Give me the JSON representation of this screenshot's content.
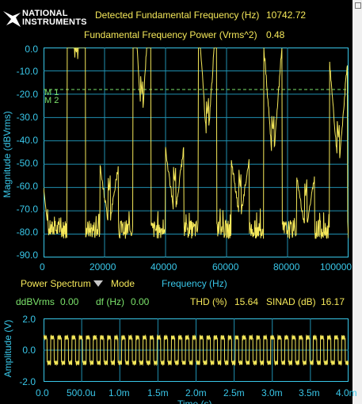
{
  "header": {
    "logo_line1": "NATIONAL",
    "logo_line2": "INSTRUMENTS",
    "fund_freq_label": "Detected Fundamental Frequency (Hz)",
    "fund_freq_value": "10742.72",
    "fund_power_label": "Fundamental Frequency Power (Vrms^2)",
    "fund_power_value": "0.48"
  },
  "colors": {
    "trace": "#f5e85a",
    "axis": "#39c7e9",
    "grid": "#1f8fb0",
    "cursor": "#7be36b",
    "background": "#000000"
  },
  "spectrum": {
    "ylabel": "Magnitude (dBVrms)",
    "xlabel": "Frequency (Hz)",
    "yticks": [
      "0.0",
      "-10.0",
      "-20.0",
      "-30.0",
      "-40.0",
      "-50.0",
      "-60.0",
      "-70.0",
      "-80.0",
      "-90.0"
    ],
    "xticks": [
      "0",
      "20000",
      "40000",
      "60000",
      "80000",
      "100000"
    ],
    "cursor1": "M 1",
    "cursor2": "M 2",
    "mode_selector": "Power Spectrum",
    "mode_label": "Mode"
  },
  "readouts": {
    "ddb_label": "ddBVrms",
    "ddb_value": "0.00",
    "df_label": "df (Hz)",
    "df_value": "0.00",
    "thd_label": "THD (%)",
    "thd_value": "15.64",
    "sinad_label": "SINAD (dB)",
    "sinad_value": "16.17"
  },
  "waveform": {
    "ylabel": "Amplitude (V)",
    "xlabel": "Time (s)",
    "yticks": [
      "2.0",
      "0.0",
      "-2.0"
    ],
    "xticks": [
      "0.0",
      "500.0u",
      "1.0m",
      "1.5m",
      "2.0m",
      "2.5m",
      "3.0m",
      "3.5m",
      "4.0m"
    ]
  },
  "chart_data": [
    {
      "type": "line",
      "xlabel": "Frequency (Hz)",
      "ylabel": "Magnitude (dBVrms)",
      "xlim": [
        0,
        100000
      ],
      "ylim": [
        -90,
        0
      ],
      "grid": true,
      "noise_floor_db": -78,
      "peaks": [
        {
          "x": 10742,
          "y": -3
        },
        {
          "x": 21485,
          "y": -62
        },
        {
          "x": 32228,
          "y": -20
        },
        {
          "x": 42971,
          "y": -58
        },
        {
          "x": 53714,
          "y": -29
        },
        {
          "x": 64457,
          "y": -60
        },
        {
          "x": 75200,
          "y": -36
        },
        {
          "x": 85943,
          "y": -64
        },
        {
          "x": 96686,
          "y": -39
        }
      ],
      "cursor_level_db": -18
    },
    {
      "type": "line",
      "xlabel": "Time (s)",
      "ylabel": "Amplitude (V)",
      "xlim": [
        0,
        0.004
      ],
      "ylim": [
        -2,
        2
      ],
      "grid": true,
      "waveform": "square",
      "amplitude": 0.8,
      "frequency_hz": 10742.72
    }
  ]
}
